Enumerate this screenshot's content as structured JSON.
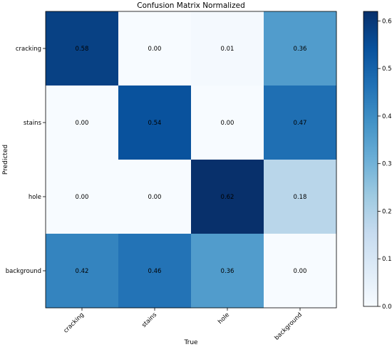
{
  "chart_data": {
    "type": "heatmap",
    "title": "Confusion Matrix Normalized",
    "xlabel": "True",
    "ylabel": "Predicted",
    "x_categories": [
      "cracking",
      "stains",
      "hole",
      "background"
    ],
    "y_categories": [
      "cracking",
      "stains",
      "hole",
      "background"
    ],
    "values": [
      [
        0.58,
        0.0,
        0.01,
        0.36
      ],
      [
        0.0,
        0.54,
        0.0,
        0.47
      ],
      [
        0.0,
        0.0,
        0.62,
        0.18
      ],
      [
        0.42,
        0.46,
        0.36,
        0.0
      ]
    ],
    "value_labels": [
      [
        "0.58",
        "0.00",
        "0.01",
        "0.36"
      ],
      [
        "0.00",
        "0.54",
        "0.00",
        "0.47"
      ],
      [
        "0.00",
        "0.00",
        "0.62",
        "0.18"
      ],
      [
        "0.42",
        "0.46",
        "0.36",
        "0.00"
      ]
    ],
    "colormap": "Blues",
    "colorbar": {
      "range": [
        0.0,
        0.62
      ],
      "ticks": [
        0.0,
        0.1,
        0.2,
        0.3,
        0.4,
        0.5,
        0.6
      ],
      "tick_labels": [
        "0.0",
        "0.1",
        "0.2",
        "0.3",
        "0.4",
        "0.5",
        "0.6"
      ]
    }
  }
}
